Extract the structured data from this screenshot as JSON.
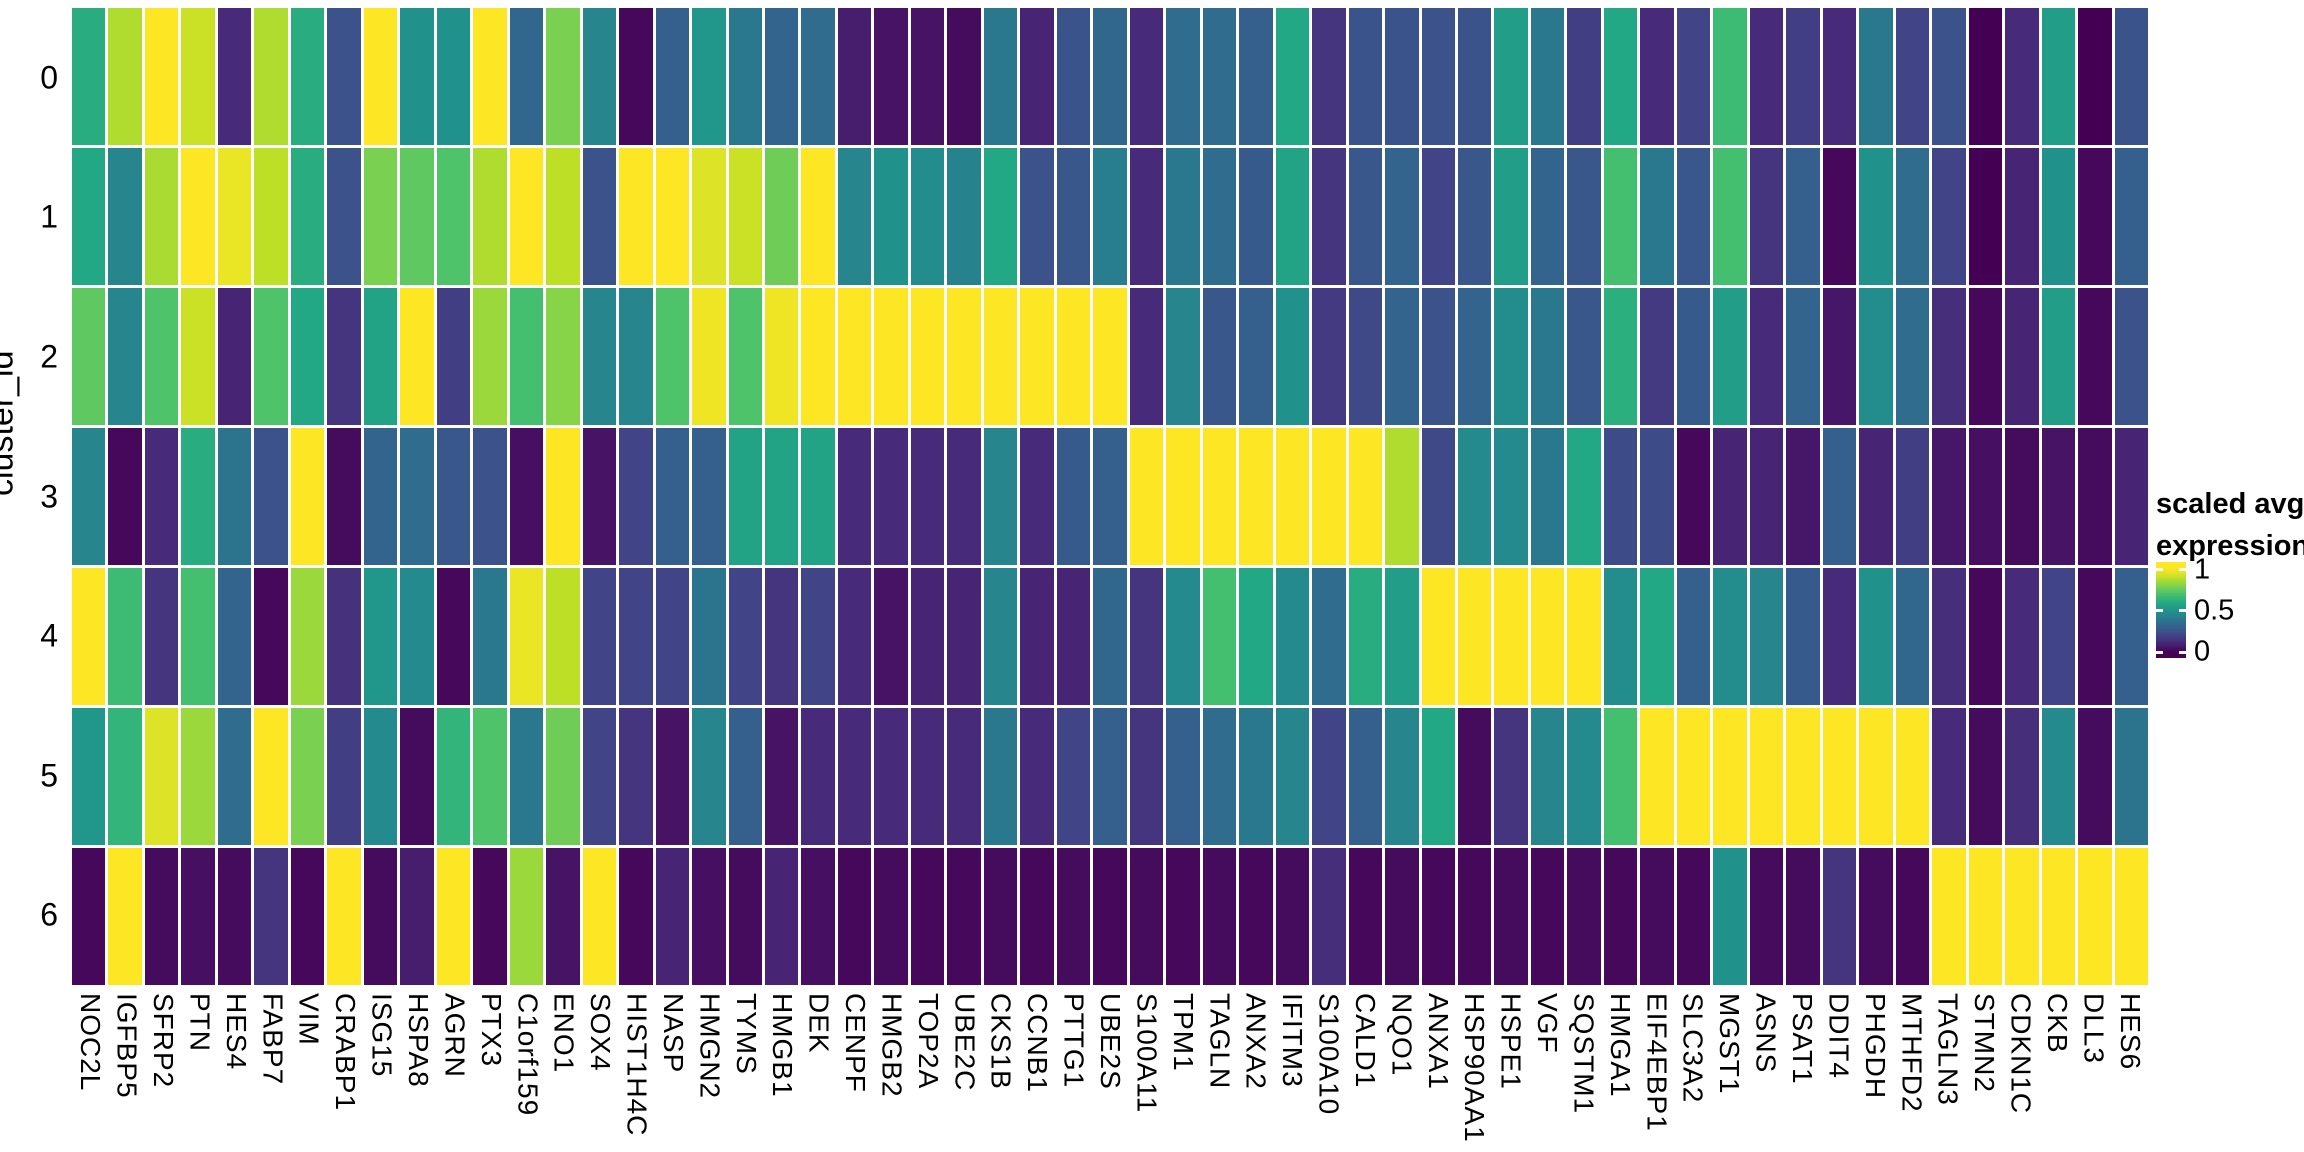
{
  "y_axis": {
    "title": "cluster_id",
    "clusters": [
      "0",
      "1",
      "2",
      "3",
      "4",
      "5",
      "6"
    ]
  },
  "legend": {
    "title_line1": "scaled avg.",
    "title_line2": "expression",
    "ticks": [
      {
        "label": "1",
        "value": 1.0
      },
      {
        "label": "0.5",
        "value": 0.5
      },
      {
        "label": "0",
        "value": 0.0
      }
    ]
  },
  "colors": {
    "background": "#ffffff",
    "viridis_stops": [
      [
        0.0,
        "#440154"
      ],
      [
        0.1,
        "#482475"
      ],
      [
        0.2,
        "#414487"
      ],
      [
        0.3,
        "#355f8d"
      ],
      [
        0.4,
        "#2a788e"
      ],
      [
        0.5,
        "#21918c"
      ],
      [
        0.6,
        "#22a884"
      ],
      [
        0.7,
        "#44bf70"
      ],
      [
        0.8,
        "#7ad151"
      ],
      [
        0.9,
        "#bddf26"
      ],
      [
        1.0,
        "#fde725"
      ]
    ]
  },
  "chart_data": {
    "type": "heatmap",
    "title": "",
    "xlabel": "",
    "ylabel": "cluster_id",
    "legend_title": "scaled avg. expression",
    "colormap": "viridis",
    "value_range": [
      0,
      1
    ],
    "legend_position": "right",
    "x": [
      "NOC2L",
      "IGFBP5",
      "SFRP2",
      "PTN",
      "HES4",
      "FABP7",
      "VIM",
      "CRABP1",
      "ISG15",
      "HSPA8",
      "AGRN",
      "PTX3",
      "C1orf159",
      "ENO1",
      "SOX4",
      "HIST1H4C",
      "NASP",
      "HMGN2",
      "TYMS",
      "HMGB1",
      "DEK",
      "CENPF",
      "HMGB2",
      "TOP2A",
      "UBE2C",
      "CKS1B",
      "CCNB1",
      "PTTG1",
      "UBE2S",
      "S100A11",
      "TPM1",
      "TAGLN",
      "ANXA2",
      "IFITM3",
      "S100A10",
      "CALD1",
      "NQO1",
      "ANXA1",
      "HSP90AA1",
      "HSPE1",
      "VGF",
      "SQSTM1",
      "HMGA1",
      "EIF4EBP1",
      "SLC3A2",
      "MGST1",
      "ASNS",
      "PSAT1",
      "DDIT4",
      "PHGDH",
      "MTHFD2",
      "TAGLN3",
      "STMN2",
      "CDKN1C",
      "CKB",
      "DLL3",
      "HES6"
    ],
    "y": [
      "0",
      "1",
      "2",
      "3",
      "4",
      "5",
      "6"
    ],
    "series": [
      {
        "name": "0",
        "values": [
          0.62,
          0.88,
          1.0,
          0.92,
          0.12,
          0.88,
          0.62,
          0.25,
          1.0,
          0.5,
          0.5,
          1.0,
          0.33,
          0.8,
          0.45,
          0.02,
          0.3,
          0.52,
          0.4,
          0.32,
          0.35,
          0.08,
          0.05,
          0.05,
          0.03,
          0.4,
          0.1,
          0.26,
          0.33,
          0.12,
          0.35,
          0.35,
          0.3,
          0.6,
          0.15,
          0.26,
          0.26,
          0.25,
          0.26,
          0.55,
          0.4,
          0.18,
          0.6,
          0.12,
          0.2,
          0.68,
          0.12,
          0.18,
          0.12,
          0.4,
          0.2,
          0.25,
          0.0,
          0.12,
          0.55,
          0.0,
          0.26
        ]
      },
      {
        "name": "1",
        "values": [
          0.6,
          0.45,
          0.87,
          1.0,
          0.97,
          0.9,
          0.62,
          0.25,
          0.8,
          0.75,
          0.72,
          0.88,
          1.0,
          0.9,
          0.25,
          1.0,
          1.0,
          0.95,
          0.92,
          0.78,
          1.0,
          0.45,
          0.5,
          0.48,
          0.44,
          0.6,
          0.25,
          0.27,
          0.42,
          0.12,
          0.4,
          0.35,
          0.28,
          0.58,
          0.15,
          0.27,
          0.32,
          0.2,
          0.27,
          0.55,
          0.32,
          0.27,
          0.7,
          0.4,
          0.27,
          0.7,
          0.15,
          0.3,
          0.02,
          0.5,
          0.35,
          0.2,
          0.0,
          0.1,
          0.5,
          0.02,
          0.3
        ]
      },
      {
        "name": "2",
        "values": [
          0.75,
          0.45,
          0.72,
          0.92,
          0.1,
          0.72,
          0.6,
          0.15,
          0.58,
          1.0,
          0.18,
          0.85,
          0.7,
          0.82,
          0.45,
          0.45,
          0.72,
          0.98,
          0.72,
          0.98,
          1.0,
          1.0,
          1.0,
          1.0,
          1.0,
          1.0,
          1.0,
          1.0,
          1.0,
          0.12,
          0.45,
          0.27,
          0.3,
          0.5,
          0.17,
          0.22,
          0.32,
          0.25,
          0.32,
          0.48,
          0.4,
          0.27,
          0.63,
          0.17,
          0.28,
          0.55,
          0.12,
          0.32,
          0.06,
          0.48,
          0.35,
          0.13,
          0.02,
          0.1,
          0.55,
          0.02,
          0.25
        ]
      },
      {
        "name": "3",
        "values": [
          0.45,
          0.02,
          0.12,
          0.62,
          0.38,
          0.25,
          1.0,
          0.03,
          0.32,
          0.35,
          0.27,
          0.25,
          0.04,
          1.0,
          0.05,
          0.2,
          0.3,
          0.3,
          0.58,
          0.58,
          0.58,
          0.12,
          0.12,
          0.12,
          0.12,
          0.45,
          0.12,
          0.28,
          0.3,
          1.0,
          1.0,
          1.0,
          1.0,
          1.0,
          1.0,
          1.0,
          0.88,
          0.22,
          0.47,
          0.47,
          0.4,
          0.6,
          0.23,
          0.23,
          0.02,
          0.1,
          0.1,
          0.06,
          0.3,
          0.1,
          0.18,
          0.06,
          0.04,
          0.03,
          0.05,
          0.03,
          0.1
        ]
      },
      {
        "name": "4",
        "values": [
          1.0,
          0.68,
          0.15,
          0.7,
          0.32,
          0.02,
          0.85,
          0.14,
          0.52,
          0.47,
          0.02,
          0.4,
          0.97,
          0.9,
          0.2,
          0.2,
          0.2,
          0.38,
          0.2,
          0.15,
          0.2,
          0.12,
          0.05,
          0.1,
          0.1,
          0.45,
          0.1,
          0.1,
          0.33,
          0.15,
          0.47,
          0.7,
          0.6,
          0.47,
          0.35,
          0.62,
          0.55,
          1.0,
          1.0,
          1.0,
          1.0,
          1.0,
          0.48,
          0.6,
          0.3,
          0.48,
          0.45,
          0.28,
          0.12,
          0.5,
          0.33,
          0.13,
          0.02,
          0.12,
          0.2,
          0.02,
          0.3
        ]
      },
      {
        "name": "5",
        "values": [
          0.52,
          0.65,
          0.95,
          0.85,
          0.35,
          1.0,
          0.8,
          0.18,
          0.47,
          0.03,
          0.65,
          0.72,
          0.4,
          0.78,
          0.2,
          0.15,
          0.05,
          0.45,
          0.3,
          0.05,
          0.12,
          0.12,
          0.12,
          0.12,
          0.12,
          0.4,
          0.12,
          0.2,
          0.3,
          0.15,
          0.3,
          0.35,
          0.4,
          0.45,
          0.2,
          0.3,
          0.45,
          0.6,
          0.03,
          0.15,
          0.45,
          0.47,
          0.7,
          1.0,
          1.0,
          1.0,
          1.0,
          1.0,
          1.0,
          1.0,
          1.0,
          0.12,
          0.03,
          0.13,
          0.47,
          0.03,
          0.38
        ]
      },
      {
        "name": "6",
        "values": [
          0.02,
          1.0,
          0.03,
          0.04,
          0.03,
          0.15,
          0.02,
          1.0,
          0.03,
          0.08,
          1.0,
          0.02,
          0.85,
          0.05,
          1.0,
          0.02,
          0.1,
          0.04,
          0.03,
          0.1,
          0.04,
          0.02,
          0.03,
          0.02,
          0.02,
          0.03,
          0.02,
          0.03,
          0.02,
          0.03,
          0.02,
          0.03,
          0.02,
          0.03,
          0.13,
          0.02,
          0.03,
          0.02,
          0.02,
          0.03,
          0.02,
          0.03,
          0.02,
          0.03,
          0.02,
          0.5,
          0.03,
          0.03,
          0.15,
          0.03,
          0.02,
          1.0,
          1.0,
          1.0,
          1.0,
          1.0,
          1.0
        ]
      }
    ]
  }
}
